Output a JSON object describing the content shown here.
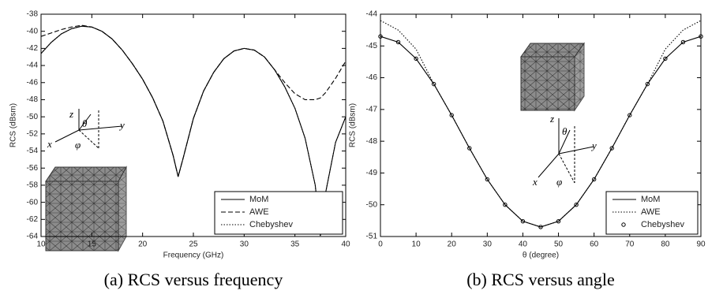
{
  "chart_data": [
    {
      "type": "line",
      "caption": "(a) RCS versus frequency",
      "xlabel": "Frequency (GHz)",
      "ylabel": "RCS (dBsm)",
      "xlim": [
        10,
        40
      ],
      "xticks": [
        10,
        15,
        20,
        25,
        30,
        35,
        40
      ],
      "ylim": [
        -64,
        -38
      ],
      "yticks": [
        -64,
        -62,
        -60,
        -58,
        -56,
        -54,
        -52,
        -50,
        -48,
        -46,
        -44,
        -42,
        -40,
        -38
      ],
      "legend": "lower right",
      "annotations": [
        "z",
        "θ",
        "y",
        "x",
        "φ"
      ],
      "x": [
        10,
        11,
        12,
        13,
        14,
        15,
        16,
        17,
        18,
        19,
        20,
        21,
        22,
        23,
        23.5,
        24,
        25,
        26,
        27,
        28,
        29,
        30,
        31,
        32,
        33,
        34,
        35,
        36,
        37,
        37.5,
        38,
        39,
        40
      ],
      "series": [
        {
          "name": "MoM",
          "color": "#000000",
          "style": "solid",
          "values": [
            -42.6,
            -41.3,
            -40.3,
            -39.7,
            -39.4,
            -39.5,
            -40.0,
            -40.9,
            -42.2,
            -43.8,
            -45.6,
            -47.8,
            -50.5,
            -54.5,
            -57.0,
            -54.8,
            -50.2,
            -47.0,
            -44.8,
            -43.2,
            -42.3,
            -42.0,
            -42.2,
            -43.0,
            -44.5,
            -46.5,
            -49.0,
            -52.5,
            -58.0,
            -63.5,
            -59.0,
            -53.0,
            -50.0
          ]
        },
        {
          "name": "AWE",
          "color": "#000000",
          "style": "dashed",
          "values": [
            -40.6,
            -40.2,
            -39.8,
            -39.5,
            -39.3,
            -39.5,
            -40.0,
            -40.9,
            -42.2,
            -43.8,
            -45.6,
            -47.8,
            -50.5,
            -54.5,
            -57.0,
            -54.8,
            -50.2,
            -47.0,
            -44.8,
            -43.2,
            -42.3,
            -42.0,
            -42.2,
            -43.0,
            -44.5,
            -46.0,
            -47.3,
            -48.0,
            -48.0,
            -47.8,
            -47.2,
            -45.5,
            -43.5
          ]
        },
        {
          "name": "Chebyshev",
          "color": "#000000",
          "style": "dotted",
          "values": [
            -42.6,
            -41.3,
            -40.3,
            -39.7,
            -39.4,
            -39.5,
            -40.0,
            -40.9,
            -42.2,
            -43.8,
            -45.6,
            -47.8,
            -50.5,
            -54.5,
            -57.0,
            -54.8,
            -50.2,
            -47.0,
            -44.8,
            -43.2,
            -42.3,
            -42.0,
            -42.2,
            -43.0,
            -44.5,
            -46.5,
            -49.0,
            -52.5,
            -58.0,
            -64.0,
            -59.0,
            -53.0,
            -50.0
          ]
        }
      ]
    },
    {
      "type": "line",
      "caption": "(b) RCS versus angle",
      "xlabel": "θ (degree)",
      "ylabel": "RCS (dBsm)",
      "xlim": [
        0,
        90
      ],
      "xticks": [
        0,
        10,
        20,
        30,
        40,
        50,
        60,
        70,
        80,
        90
      ],
      "ylim": [
        -51,
        -44
      ],
      "yticks": [
        -51,
        -50,
        -49,
        -48,
        -47,
        -46,
        -45,
        -44
      ],
      "legend": "lower right",
      "annotations": [
        "z",
        "θ",
        "y",
        "x",
        "φ"
      ],
      "x": [
        0,
        5,
        10,
        15,
        20,
        25,
        30,
        35,
        40,
        45,
        50,
        55,
        60,
        65,
        70,
        75,
        80,
        85,
        90
      ],
      "series": [
        {
          "name": "MoM",
          "color": "#000000",
          "style": "solid",
          "values": [
            -44.7,
            -44.88,
            -45.4,
            -46.2,
            -47.18,
            -48.22,
            -49.2,
            -50.0,
            -50.52,
            -50.7,
            -50.52,
            -50.0,
            -49.2,
            -48.22,
            -47.18,
            -46.2,
            -45.4,
            -44.88,
            -44.7
          ]
        },
        {
          "name": "AWE",
          "color": "#000000",
          "style": "dotted",
          "values": [
            -44.2,
            -44.5,
            -45.1,
            -46.2,
            -47.18,
            -48.22,
            -49.2,
            -50.0,
            -50.52,
            -50.7,
            -50.52,
            -50.0,
            -49.2,
            -48.22,
            -47.18,
            -46.2,
            -45.1,
            -44.5,
            -44.2
          ]
        },
        {
          "name": "Chebyshev",
          "color": "#000000",
          "style": "markers",
          "values": [
            -44.7,
            -44.88,
            -45.4,
            -46.2,
            -47.18,
            -48.22,
            -49.2,
            -50.0,
            -50.52,
            -50.7,
            -50.52,
            -50.0,
            -49.2,
            -48.22,
            -47.18,
            -46.2,
            -45.4,
            -44.88,
            -44.7
          ]
        }
      ]
    }
  ]
}
